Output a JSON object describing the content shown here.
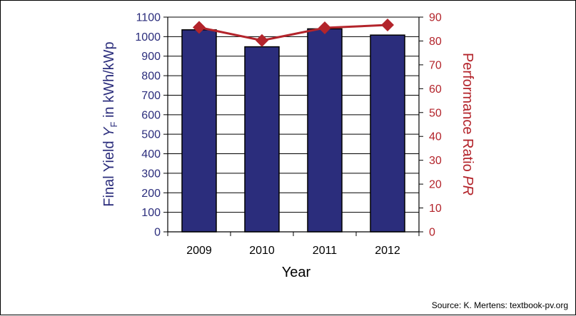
{
  "chart_data": {
    "type": "bar",
    "categories": [
      "2009",
      "2010",
      "2011",
      "2012"
    ],
    "series": [
      {
        "axis": "left",
        "type": "bar",
        "values": [
          1035,
          948,
          1040,
          1008
        ],
        "color": "#2b2d7c"
      },
      {
        "axis": "right",
        "type": "line",
        "values": [
          85.7,
          80.2,
          85.5,
          86.7
        ],
        "color": "#b3242b"
      }
    ],
    "xlabel": "Year",
    "ylabel": {
      "main": "Final Yield ",
      "var": "Y",
      "sub": "F",
      "rest": " in kWh/kWp"
    },
    "y2label": {
      "main": "Performance Ratio ",
      "var": "PR"
    },
    "ylim": [
      0,
      1100
    ],
    "y2lim": [
      0,
      90
    ],
    "yticks": [
      "0",
      "100",
      "200",
      "300",
      "400",
      "500",
      "600",
      "700",
      "800",
      "900",
      "1000",
      "1100"
    ],
    "y2ticks": [
      "0",
      "10",
      "20",
      "30",
      "40",
      "50",
      "60",
      "70",
      "80",
      "90"
    ],
    "grid": true,
    "left_color": "#2b2d7c",
    "right_color": "#b3242b"
  },
  "source": "Source: K. Mertens: textbook-pv.org"
}
